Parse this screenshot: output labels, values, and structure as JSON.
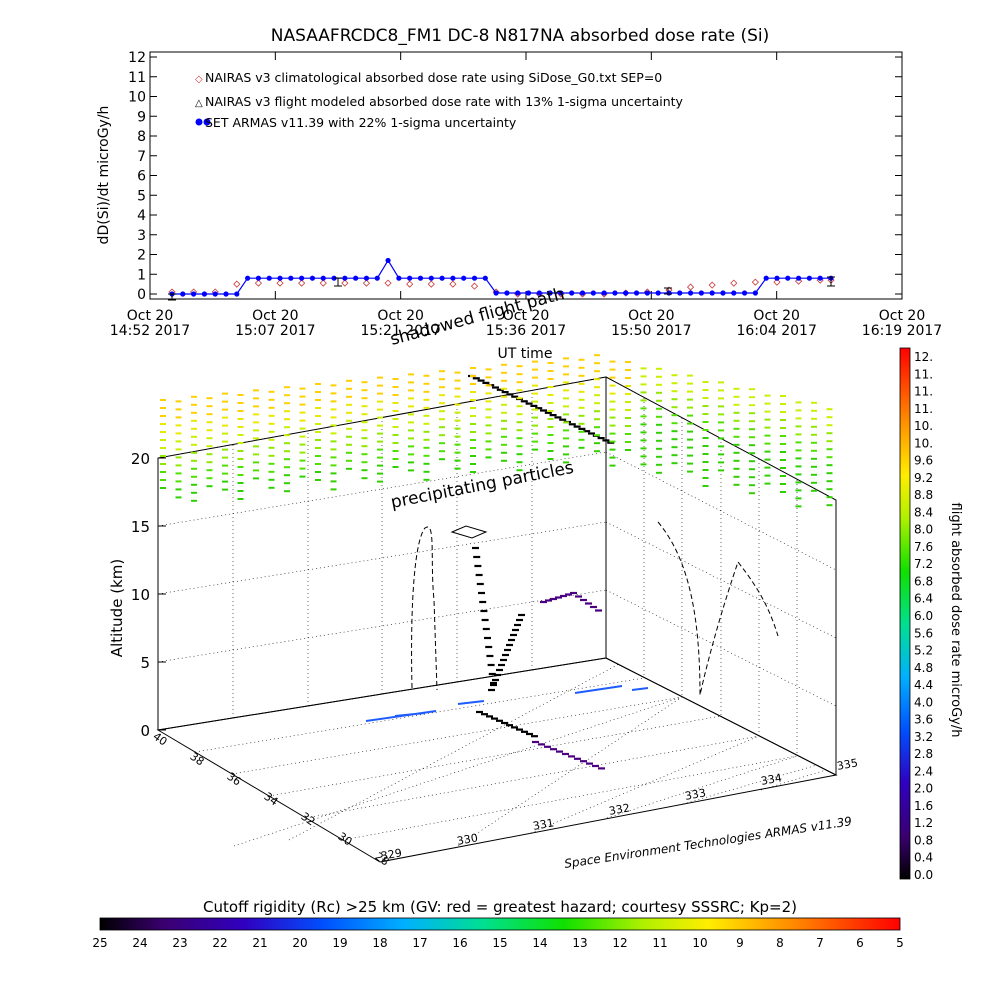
{
  "title": "NASAAFRCDC8_FM1 DC-8    N817NA absorbed dose rate (Si)",
  "chart_data": [
    {
      "type": "line",
      "ylabel": "dD(Si)/dt microGy/h",
      "xlabel": "UT time",
      "ylim": [
        0,
        12
      ],
      "yticks": [
        "0",
        "1",
        "2",
        "3",
        "4",
        "5",
        "6",
        "7",
        "8",
        "9",
        "10",
        "11",
        "12"
      ],
      "xtick_labels": [
        {
          "top": "Oct 20",
          "bottom": "14:52 2017"
        },
        {
          "top": "Oct 20",
          "bottom": "15:07 2017"
        },
        {
          "top": "Oct 20",
          "bottom": "15:21 2017"
        },
        {
          "top": "Oct 20",
          "bottom": "15:36 2017"
        },
        {
          "top": "Oct 20",
          "bottom": "15:50 2017"
        },
        {
          "top": "Oct 20",
          "bottom": "16:04 2017"
        },
        {
          "top": "Oct 20",
          "bottom": "16:19 2017"
        }
      ],
      "legend_position": "top-left",
      "legend": [
        "NAIRAS v3 climatological absorbed dose rate using SiDose_G0.txt SEP=0",
        "NAIRAS v3 flight modeled absorbed dose rate with 13% 1-sigma uncertainty",
        "SET ARMAS v11.39 with 22% 1-sigma uncertainty"
      ],
      "series": [
        {
          "name": "SET ARMAS v11.39 with 22% 1-sigma uncertainty",
          "color": "#0000ff",
          "x_minutes_from_start": [
            0,
            2,
            4,
            6,
            8,
            10,
            12,
            14,
            16,
            18,
            20,
            22,
            24,
            26,
            28,
            30,
            32,
            34,
            36,
            38,
            40,
            42,
            44,
            46,
            48,
            50,
            52,
            54,
            56,
            58,
            60,
            62,
            64,
            66,
            68,
            70,
            72,
            74,
            76,
            78,
            80,
            82,
            84,
            86,
            88,
            90,
            92,
            94,
            96,
            98,
            100,
            102,
            104,
            106,
            108,
            110,
            112,
            114,
            116,
            118,
            120,
            122
          ],
          "values": [
            0.0,
            0.0,
            0.0,
            0.0,
            0.0,
            0.0,
            0.0,
            0.8,
            0.8,
            0.8,
            0.8,
            0.8,
            0.8,
            0.8,
            0.8,
            0.8,
            0.8,
            0.8,
            0.8,
            0.8,
            1.7,
            0.8,
            0.8,
            0.8,
            0.8,
            0.8,
            0.8,
            0.8,
            0.8,
            0.8,
            0.05,
            0.05,
            0.05,
            0.05,
            0.05,
            0.05,
            0.05,
            0.05,
            0.05,
            0.05,
            0.05,
            0.05,
            0.05,
            0.05,
            0.05,
            0.05,
            0.05,
            0.05,
            0.05,
            0.05,
            0.05,
            0.05,
            0.05,
            0.05,
            0.05,
            0.8,
            0.8,
            0.8,
            0.8,
            0.8,
            0.8,
            0.8
          ]
        },
        {
          "name": "NAIRAS v3 climatological absorbed dose rate using SiDose_G0.txt SEP=0",
          "color": "#cc3333",
          "x_minutes_from_start": [
            0,
            4,
            8,
            12,
            16,
            20,
            24,
            28,
            32,
            36,
            40,
            44,
            48,
            52,
            56,
            60,
            64,
            68,
            72,
            76,
            80,
            84,
            88,
            92,
            96,
            100,
            104,
            108,
            112,
            116,
            120,
            122
          ],
          "values": [
            0.1,
            0.1,
            0.1,
            0.5,
            0.55,
            0.55,
            0.55,
            0.55,
            0.55,
            0.55,
            0.55,
            0.5,
            0.5,
            0.5,
            0.4,
            0.1,
            0.0,
            0.0,
            0.0,
            0.0,
            0.0,
            0.05,
            0.1,
            0.2,
            0.35,
            0.45,
            0.55,
            0.6,
            0.6,
            0.65,
            0.7,
            0.7
          ]
        }
      ]
    },
    {
      "type": "scatter",
      "ylabel": "Altitude (km)",
      "zticks": [
        "0",
        "5",
        "10",
        "15",
        "20"
      ],
      "lat_ticks": [
        "40",
        "38",
        "36",
        "34",
        "32",
        "30",
        "28"
      ],
      "lon_ticks": [
        "329",
        "330",
        "331",
        "332",
        "333",
        "334",
        "335"
      ],
      "annotations": [
        "shadowed flight path",
        "precipitating particles"
      ],
      "credit": "Space Environment Technologies ARMAS v11.39"
    },
    {
      "type": "heatmap",
      "colorbar_label": "flight absorbed dose rate microGy/h",
      "colorbar_ticks": [
        "0.0",
        "0.4",
        "0.8",
        "1.2",
        "1.6",
        "2.0",
        "2.4",
        "2.8",
        "3.2",
        "3.6",
        "4.0",
        "4.4",
        "4.8",
        "5.2",
        "5.6",
        "6.0",
        "6.4",
        "6.8",
        "7.2",
        "7.6",
        "8.0",
        "8.4",
        "8.8",
        "9.2",
        "9.6",
        "10.",
        "10.",
        "11.",
        "11.",
        "11.",
        "12."
      ]
    },
    {
      "type": "heatmap",
      "colorbar_label": "Cutoff rigidity (Rc) >25 km (GV: red = greatest hazard; courtesy SSSRC; Kp=2)",
      "colorbar_ticks": [
        "25",
        "24",
        "23",
        "22",
        "21",
        "20",
        "19",
        "18",
        "17",
        "16",
        "15",
        "14",
        "13",
        "12",
        "11",
        "10",
        "9",
        "8",
        "7",
        "6",
        "5"
      ]
    }
  ]
}
